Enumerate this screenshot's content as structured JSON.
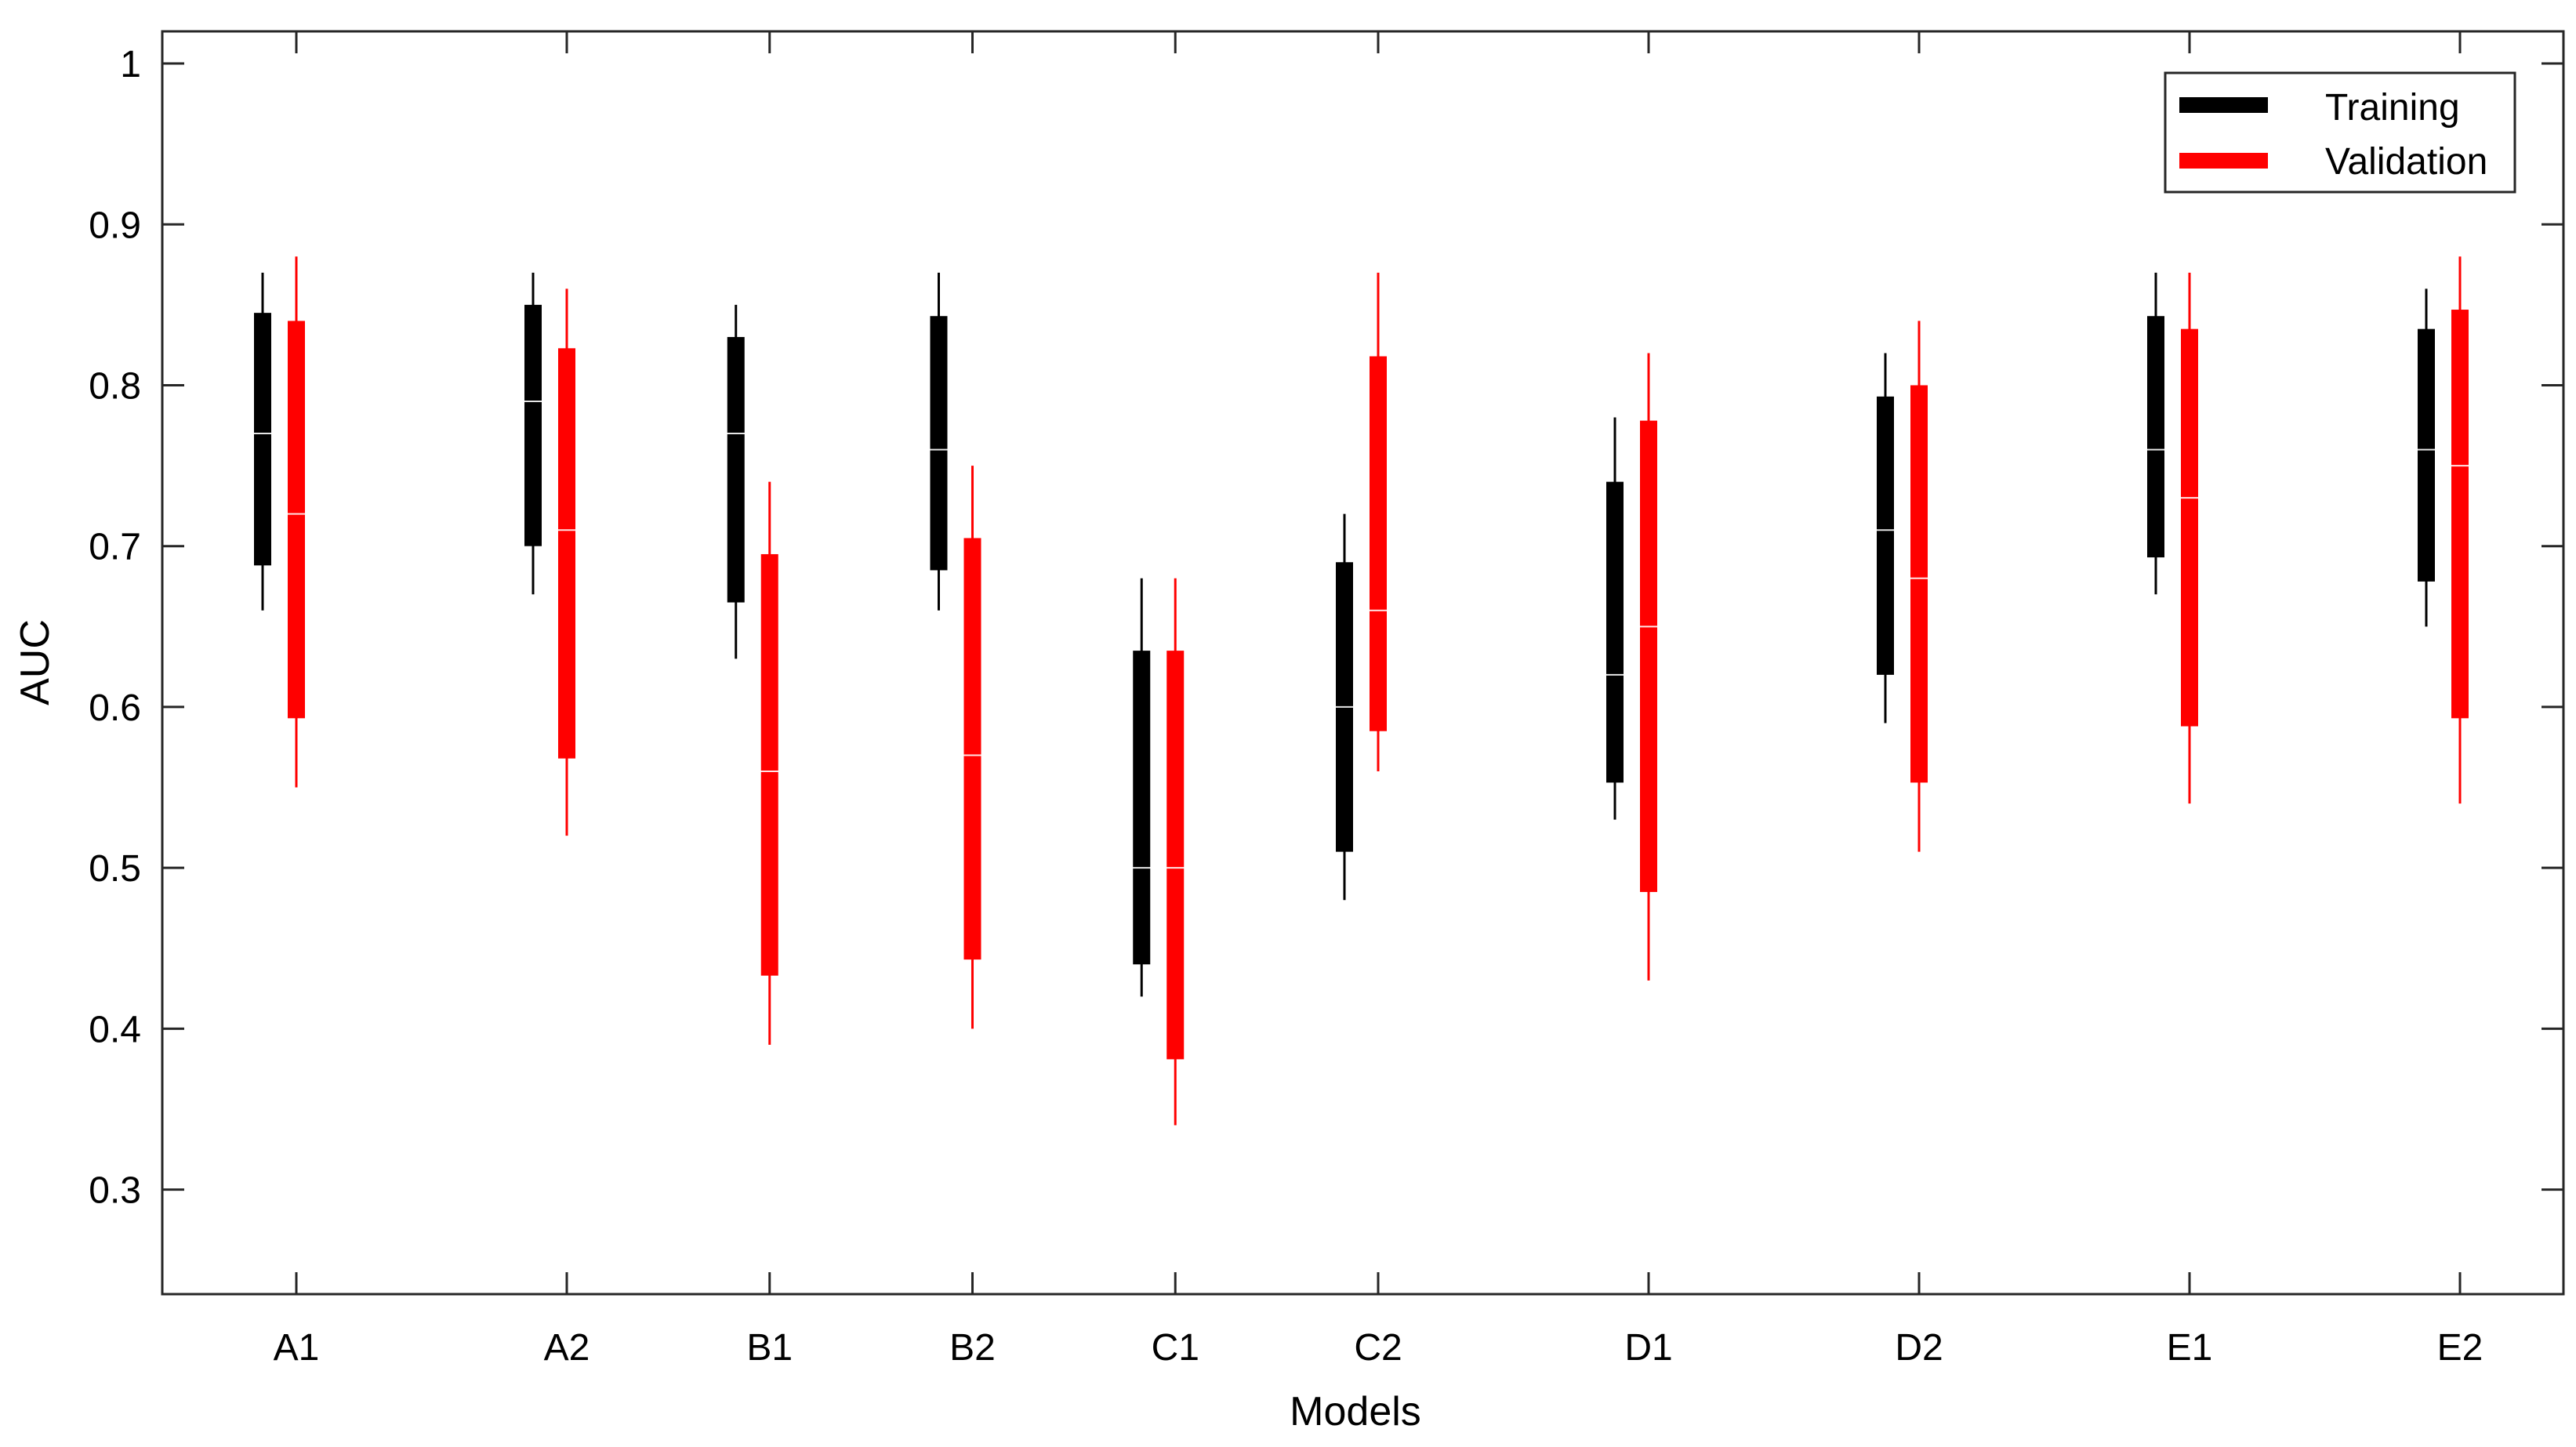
{
  "chart_data": {
    "type": "bar",
    "subtype": "floating-box-with-whiskers",
    "title": "",
    "xlabel": "Models",
    "ylabel": "AUC",
    "ylim": [
      0.235,
      1.02
    ],
    "yticks": [
      0.3,
      0.4,
      0.5,
      0.6,
      0.7,
      0.8,
      0.9,
      1
    ],
    "ytick_labels": [
      "0.3",
      "0.4",
      "0.5",
      "0.6",
      "0.7",
      "0.8",
      "0.9",
      "1"
    ],
    "categories": [
      "A1",
      "A2",
      "B1",
      "B2",
      "C1",
      "C2",
      "D1",
      "D2",
      "E1",
      "E2"
    ],
    "category_positions": [
      1,
      2,
      2.75,
      3.5,
      4.25,
      5,
      6,
      7,
      8,
      9
    ],
    "grid": false,
    "legend_position": "top-right",
    "series": [
      {
        "name": "Training",
        "color": "#000000",
        "whisker_low": [
          0.66,
          0.67,
          0.63,
          0.66,
          0.42,
          0.48,
          0.53,
          0.59,
          0.67,
          0.65
        ],
        "box_low": [
          0.688,
          0.7,
          0.665,
          0.685,
          0.44,
          0.51,
          0.553,
          0.62,
          0.693,
          0.678
        ],
        "median": [
          0.77,
          0.79,
          0.77,
          0.76,
          0.5,
          0.6,
          0.62,
          0.71,
          0.76,
          0.76
        ],
        "box_high": [
          0.845,
          0.85,
          0.83,
          0.843,
          0.635,
          0.69,
          0.74,
          0.793,
          0.843,
          0.835
        ],
        "whisker_high": [
          0.87,
          0.87,
          0.85,
          0.87,
          0.68,
          0.72,
          0.78,
          0.82,
          0.87,
          0.86
        ]
      },
      {
        "name": "Validation",
        "color": "#ff0000",
        "whisker_low": [
          0.55,
          0.52,
          0.39,
          0.4,
          0.34,
          0.56,
          0.43,
          0.51,
          0.54,
          0.54
        ],
        "box_low": [
          0.593,
          0.568,
          0.433,
          0.443,
          0.381,
          0.585,
          0.485,
          0.553,
          0.588,
          0.593
        ],
        "median": [
          0.72,
          0.71,
          0.56,
          0.57,
          0.5,
          0.66,
          0.65,
          0.68,
          0.73,
          0.75
        ],
        "box_high": [
          0.84,
          0.823,
          0.695,
          0.705,
          0.635,
          0.818,
          0.778,
          0.8,
          0.835,
          0.847
        ],
        "whisker_high": [
          0.88,
          0.86,
          0.74,
          0.75,
          0.68,
          0.87,
          0.82,
          0.84,
          0.87,
          0.88
        ]
      }
    ]
  }
}
